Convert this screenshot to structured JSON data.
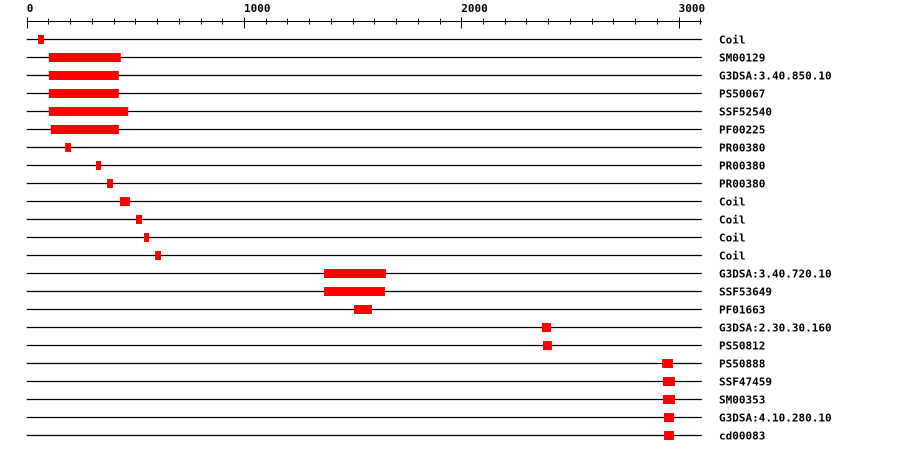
{
  "axis": {
    "min": 0,
    "max": 3107,
    "major_ticks": [
      0,
      1000,
      2000,
      3000
    ],
    "major_tick_labels": [
      "0",
      "1000",
      "2000",
      "3000"
    ],
    "minor_tick_step": 100
  },
  "colors": {
    "feature": "#ff0000",
    "line": "#000000"
  },
  "tracks": [
    {
      "label": "Coil",
      "features": [
        [
          52,
          80
        ]
      ]
    },
    {
      "label": "SM00129",
      "features": [
        [
          102,
          433
        ]
      ]
    },
    {
      "label": "G3DSA:3.40.850.10",
      "features": [
        [
          102,
          424
        ]
      ]
    },
    {
      "label": "PS50067",
      "features": [
        [
          102,
          424
        ]
      ]
    },
    {
      "label": "SSF52540",
      "features": [
        [
          102,
          467
        ]
      ]
    },
    {
      "label": "PF00225",
      "features": [
        [
          111,
          424
        ]
      ]
    },
    {
      "label": "PR00380",
      "features": [
        [
          177,
          204
        ]
      ]
    },
    {
      "label": "PR00380",
      "features": [
        [
          319,
          342
        ]
      ]
    },
    {
      "label": "PR00380",
      "features": [
        [
          370,
          397
        ]
      ]
    },
    {
      "label": "Coil",
      "features": [
        [
          429,
          475
        ]
      ]
    },
    {
      "label": "Coil",
      "features": [
        [
          503,
          531
        ]
      ]
    },
    {
      "label": "Coil",
      "features": [
        [
          540,
          563
        ]
      ]
    },
    {
      "label": "Coil",
      "features": [
        [
          591,
          618
        ]
      ]
    },
    {
      "label": "G3DSA:3.40.720.10",
      "features": [
        [
          1368,
          1653
        ]
      ]
    },
    {
      "label": "SSF53649",
      "features": [
        [
          1368,
          1649
        ]
      ]
    },
    {
      "label": "PF01663",
      "features": [
        [
          1506,
          1589
        ]
      ]
    },
    {
      "label": "G3DSA:2.30.30.160",
      "features": [
        [
          2371,
          2413
        ]
      ]
    },
    {
      "label": "PS50812",
      "features": [
        [
          2376,
          2417
        ]
      ]
    },
    {
      "label": "PS50888",
      "features": [
        [
          2924,
          2974
        ]
      ]
    },
    {
      "label": "SSF47459",
      "features": [
        [
          2928,
          2983
        ]
      ]
    },
    {
      "label": "SM00353",
      "features": [
        [
          2928,
          2983
        ]
      ]
    },
    {
      "label": "G3DSA:4.10.280.10",
      "features": [
        [
          2933,
          2979
        ]
      ]
    },
    {
      "label": "cd00083",
      "features": [
        [
          2933,
          2979
        ]
      ]
    }
  ]
}
